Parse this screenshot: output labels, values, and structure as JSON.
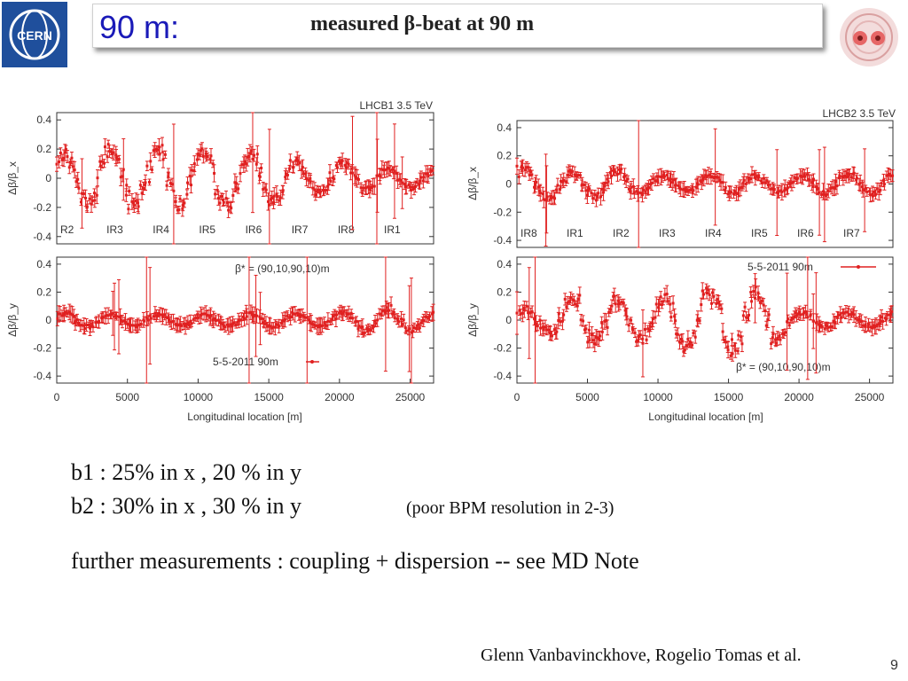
{
  "slide": {
    "title": "90 m:",
    "subtitle": "measured β-beat at 90 m",
    "line1": "b1 : 25% in x ,  20 % in y",
    "line2": "b2 : 30% in x ,  30 % in y",
    "note": "(poor BPM resolution in 2-3)",
    "line3": "further measurements :  coupling + dispersion -- see MD Note",
    "credit": "Glenn Vanbavinckhove, Rogelio Tomas et al.",
    "page_number": "9",
    "logo_text": "CERN"
  },
  "colors": {
    "series": "#e02020",
    "title": "#1a1ab8",
    "logo": "#1f4f9c"
  },
  "chart_data": [
    {
      "type": "scatter",
      "title": "LHCB1 3.5 TeV",
      "ylabel": "Δβ/β_x",
      "xlabel": "",
      "xlim": [
        0,
        26659
      ],
      "ylim": [
        -0.45,
        0.45
      ],
      "yticks": [
        "0.4",
        "0.2",
        "0",
        "-0.2",
        "-0.4"
      ],
      "ir_labels": [
        "R2",
        "IR3",
        "IR4",
        "IR5",
        "IR6",
        "IR7",
        "IR8",
        "IR1"
      ],
      "envelope": {
        "positions": [
          0,
          2000,
          4000,
          6000,
          8000,
          10000,
          12000,
          14000,
          16000,
          18000,
          20000,
          22000,
          24000,
          26659
        ],
        "beat": [
          0.17,
          0.17,
          0.2,
          0.18,
          0.2,
          0.2,
          0.18,
          0.18,
          0.15,
          0.1,
          0.1,
          0.08,
          0.07,
          0.06
        ]
      }
    },
    {
      "type": "scatter",
      "title": "LHCB2 3.5 TeV",
      "ylabel": "Δβ/β_x",
      "xlabel": "",
      "xlim": [
        0,
        26659
      ],
      "ylim": [
        -0.45,
        0.45
      ],
      "yticks": [
        "0.4",
        "0.2",
        "0",
        "-0.2",
        "-0.4"
      ],
      "ir_labels": [
        "IR8",
        "IR1",
        "IR2",
        "IR3",
        "IR4",
        "IR5",
        "IR6",
        "IR7"
      ],
      "envelope": {
        "positions": [
          0,
          2000,
          4000,
          6000,
          8000,
          10000,
          12000,
          14000,
          16000,
          18000,
          20000,
          22000,
          24000,
          26659
        ],
        "beat": [
          0.15,
          0.1,
          0.08,
          0.1,
          0.08,
          0.06,
          0.05,
          0.06,
          0.06,
          0.05,
          0.06,
          0.07,
          0.07,
          0.07
        ]
      }
    },
    {
      "type": "scatter",
      "title": "",
      "ylabel": "Δβ/β_y",
      "xlabel": "Longitudinal location [m]",
      "xlim": [
        0,
        26659
      ],
      "ylim": [
        -0.45,
        0.45
      ],
      "yticks": [
        "0.4",
        "0.2",
        "0",
        "-0.2",
        "-0.4"
      ],
      "xticks": [
        "0",
        "5000",
        "10000",
        "15000",
        "20000",
        "25000"
      ],
      "legend": "5-5-2011 90m",
      "annotation": "β* = (90,10,90,10)m",
      "envelope": {
        "positions": [
          0,
          2000,
          4000,
          6000,
          8000,
          10000,
          12000,
          14000,
          16000,
          18000,
          20000,
          22000,
          24000,
          26659
        ],
        "beat": [
          0.05,
          0.05,
          0.04,
          0.04,
          0.04,
          0.04,
          0.04,
          0.05,
          0.05,
          0.04,
          0.05,
          0.08,
          0.1,
          0.05
        ]
      }
    },
    {
      "type": "scatter",
      "title": "",
      "ylabel": "Δβ/β_y",
      "xlabel": "Longitudinal location [m]",
      "xlim": [
        0,
        26659
      ],
      "ylim": [
        -0.45,
        0.45
      ],
      "yticks": [
        "0.4",
        "0.2",
        "0",
        "-0.2",
        "-0.4"
      ],
      "xticks": [
        "0",
        "5000",
        "10000",
        "15000",
        "20000",
        "25000"
      ],
      "legend": "5-5-2011 90m",
      "annotation": "β* = (90,10,90,10)m",
      "envelope": {
        "positions": [
          0,
          2000,
          4000,
          6000,
          8000,
          10000,
          12000,
          14000,
          16000,
          18000,
          20000,
          22000,
          24000,
          26659
        ],
        "beat": [
          0.08,
          0.08,
          0.2,
          0.15,
          0.15,
          0.15,
          0.22,
          0.2,
          0.22,
          0.18,
          0.05,
          0.05,
          0.05,
          0.05
        ]
      }
    }
  ]
}
